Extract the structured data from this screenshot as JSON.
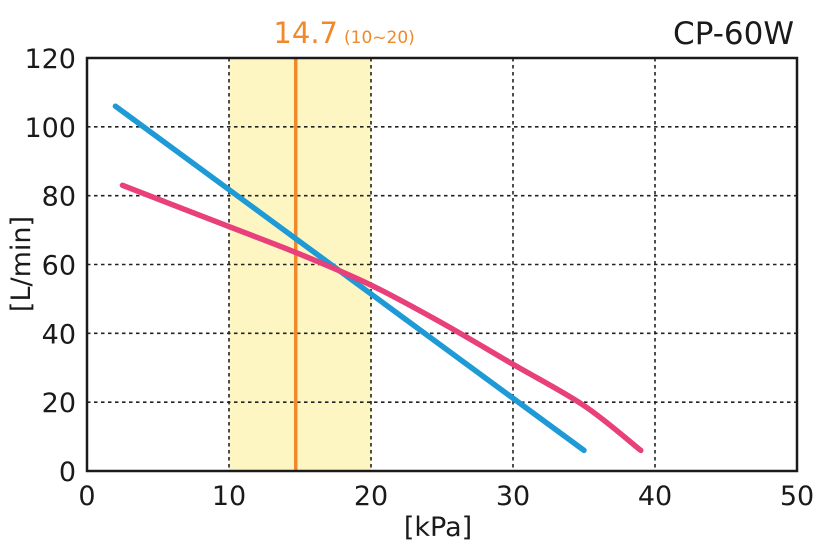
{
  "chart_data": {
    "type": "line",
    "title": "CP-60W",
    "xlabel": "[kPa]",
    "ylabel": "[L/min]",
    "xlim": [
      0,
      50
    ],
    "ylim": [
      0,
      120
    ],
    "x_ticks": [
      "0",
      "10",
      "20",
      "30",
      "40",
      "50"
    ],
    "y_ticks": [
      "0",
      "20",
      "40",
      "60",
      "80",
      "100",
      "120"
    ],
    "grid": true,
    "grid_style": "dashed",
    "marker": {
      "value": 14.7,
      "label": "14.7",
      "range": [
        10,
        20
      ],
      "range_label": "(10~20)",
      "color": "#f0892a",
      "band_color": "#fdf6c3"
    },
    "series": [
      {
        "color": "#1e9ad6",
        "x": [
          2,
          35
        ],
        "y": [
          106,
          6
        ]
      },
      {
        "color": "#e8407a",
        "x": [
          2.5,
          10,
          15,
          20,
          25,
          30,
          35,
          39
        ],
        "y": [
          83,
          71,
          63,
          54,
          43,
          31,
          19,
          6
        ]
      }
    ]
  }
}
